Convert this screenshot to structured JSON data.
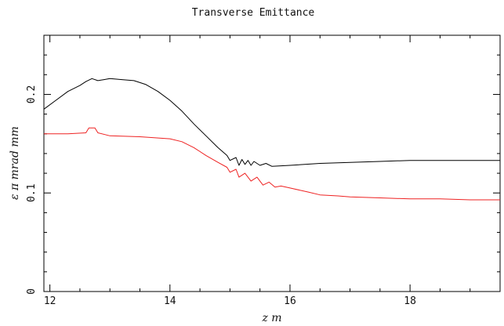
{
  "chart_data": {
    "type": "line",
    "title": "Transverse Emittance",
    "xlabel": "z m",
    "ylabel": "ε π mrad mm",
    "xlim": [
      11.9,
      19.5
    ],
    "ylim": [
      0,
      0.26
    ],
    "x_ticks": [
      12,
      14,
      16,
      18
    ],
    "y_ticks": [
      0,
      0.1,
      0.2
    ],
    "x_tick_labels": [
      "12",
      "14",
      "16",
      "18"
    ],
    "y_tick_labels": [
      "0",
      "0.1",
      "0.2"
    ],
    "grid": false,
    "legend": "none",
    "series": [
      {
        "color": "#000000",
        "points": [
          [
            11.9,
            0.185
          ],
          [
            12.1,
            0.194
          ],
          [
            12.3,
            0.203
          ],
          [
            12.5,
            0.209
          ],
          [
            12.6,
            0.213
          ],
          [
            12.7,
            0.216
          ],
          [
            12.8,
            0.214
          ],
          [
            12.9,
            0.215
          ],
          [
            13.0,
            0.216
          ],
          [
            13.2,
            0.215
          ],
          [
            13.4,
            0.214
          ],
          [
            13.6,
            0.21
          ],
          [
            13.8,
            0.203
          ],
          [
            14.0,
            0.194
          ],
          [
            14.2,
            0.183
          ],
          [
            14.4,
            0.17
          ],
          [
            14.6,
            0.158
          ],
          [
            14.8,
            0.146
          ],
          [
            14.95,
            0.138
          ],
          [
            15.0,
            0.133
          ],
          [
            15.1,
            0.136
          ],
          [
            15.15,
            0.128
          ],
          [
            15.2,
            0.134
          ],
          [
            15.25,
            0.129
          ],
          [
            15.3,
            0.133
          ],
          [
            15.35,
            0.128
          ],
          [
            15.4,
            0.132
          ],
          [
            15.5,
            0.128
          ],
          [
            15.6,
            0.13
          ],
          [
            15.7,
            0.127
          ],
          [
            16.0,
            0.128
          ],
          [
            16.5,
            0.13
          ],
          [
            17.0,
            0.131
          ],
          [
            17.5,
            0.132
          ],
          [
            18.0,
            0.133
          ],
          [
            18.5,
            0.133
          ],
          [
            19.0,
            0.133
          ],
          [
            19.5,
            0.133
          ]
        ]
      },
      {
        "color": "#ee2222",
        "points": [
          [
            11.9,
            0.16
          ],
          [
            12.3,
            0.16
          ],
          [
            12.6,
            0.161
          ],
          [
            12.65,
            0.166
          ],
          [
            12.75,
            0.166
          ],
          [
            12.8,
            0.161
          ],
          [
            13.0,
            0.158
          ],
          [
            13.5,
            0.157
          ],
          [
            14.0,
            0.155
          ],
          [
            14.2,
            0.152
          ],
          [
            14.4,
            0.146
          ],
          [
            14.6,
            0.138
          ],
          [
            14.8,
            0.131
          ],
          [
            14.95,
            0.126
          ],
          [
            15.0,
            0.121
          ],
          [
            15.1,
            0.124
          ],
          [
            15.15,
            0.116
          ],
          [
            15.25,
            0.12
          ],
          [
            15.35,
            0.112
          ],
          [
            15.45,
            0.116
          ],
          [
            15.55,
            0.108
          ],
          [
            15.65,
            0.111
          ],
          [
            15.75,
            0.106
          ],
          [
            15.85,
            0.107
          ],
          [
            16.0,
            0.105
          ],
          [
            16.3,
            0.101
          ],
          [
            16.5,
            0.098
          ],
          [
            16.8,
            0.097
          ],
          [
            17.0,
            0.096
          ],
          [
            17.5,
            0.095
          ],
          [
            18.0,
            0.094
          ],
          [
            18.5,
            0.094
          ],
          [
            19.0,
            0.093
          ],
          [
            19.5,
            0.093
          ]
        ]
      }
    ]
  }
}
